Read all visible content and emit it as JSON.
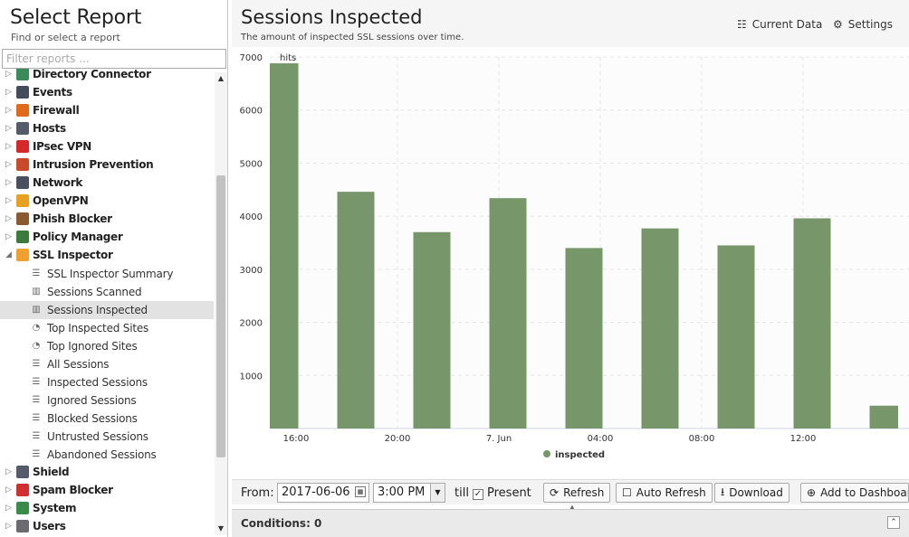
{
  "left": {
    "title": "Select Report",
    "subtitle": "Find or select a report",
    "filter_placeholder": "Filter reports ...",
    "categories_top": [
      {
        "label": "Directory Connector",
        "icon": "directory-connector-icon",
        "color": "#3a8a5a",
        "expanded": false
      },
      {
        "label": "Events",
        "icon": "events-icon",
        "color": "#444c5c",
        "expanded": false
      },
      {
        "label": "Firewall",
        "icon": "firewall-icon",
        "color": "#e06a1b",
        "expanded": false
      },
      {
        "label": "Hosts",
        "icon": "hosts-icon",
        "color": "#555b6a",
        "expanded": false
      },
      {
        "label": "IPsec VPN",
        "icon": "ipsec-vpn-icon",
        "color": "#d4282a",
        "expanded": false
      },
      {
        "label": "Intrusion Prevention",
        "icon": "intrusion-prevention-icon",
        "color": "#c94a2a",
        "expanded": false
      },
      {
        "label": "Network",
        "icon": "network-icon",
        "color": "#4a5060",
        "expanded": false
      },
      {
        "label": "OpenVPN",
        "icon": "openvpn-icon",
        "color": "#e8a020",
        "expanded": false
      },
      {
        "label": "Phish Blocker",
        "icon": "phish-blocker-icon",
        "color": "#8a5a30",
        "expanded": false
      },
      {
        "label": "Policy Manager",
        "icon": "policy-manager-icon",
        "color": "#3a7a3a",
        "expanded": false
      },
      {
        "label": "SSL Inspector",
        "icon": "ssl-inspector-icon",
        "color": "#f0a030",
        "expanded": true
      }
    ],
    "ssl_items": [
      {
        "label": "SSL Inspector Summary",
        "icon": "text-list-icon",
        "glyph": "☰"
      },
      {
        "label": "Sessions Scanned",
        "icon": "bar-chart-icon",
        "glyph": "▥"
      },
      {
        "label": "Sessions Inspected",
        "icon": "bar-chart-icon",
        "glyph": "▥",
        "selected": true
      },
      {
        "label": "Top Inspected Sites",
        "icon": "pie-chart-icon",
        "glyph": "◔"
      },
      {
        "label": "Top Ignored Sites",
        "icon": "pie-chart-icon",
        "glyph": "◔"
      },
      {
        "label": "All Sessions",
        "icon": "list-icon",
        "glyph": "☰"
      },
      {
        "label": "Inspected Sessions",
        "icon": "list-icon",
        "glyph": "☰"
      },
      {
        "label": "Ignored Sessions",
        "icon": "list-icon",
        "glyph": "☰"
      },
      {
        "label": "Blocked Sessions",
        "icon": "list-icon",
        "glyph": "☰"
      },
      {
        "label": "Untrusted Sessions",
        "icon": "list-icon",
        "glyph": "☰"
      },
      {
        "label": "Abandoned Sessions",
        "icon": "list-icon",
        "glyph": "☰"
      }
    ],
    "categories_bottom": [
      {
        "label": "Shield",
        "icon": "shield-icon",
        "color": "#555b6a",
        "expanded": false
      },
      {
        "label": "Spam Blocker",
        "icon": "spam-blocker-icon",
        "color": "#d03030",
        "expanded": false
      },
      {
        "label": "System",
        "icon": "system-icon",
        "color": "#3a8a4a",
        "expanded": false
      },
      {
        "label": "Users",
        "icon": "users-icon",
        "color": "#6a6a70",
        "expanded": false
      }
    ]
  },
  "report": {
    "title": "Sessions Inspected",
    "description": "The amount of inspected SSL sessions over time.",
    "current_data_label": "Current Data",
    "settings_label": "Settings"
  },
  "chart_data": {
    "type": "bar",
    "title": "",
    "ylabel": "hits",
    "xlabel": "",
    "ylim": [
      0,
      7000
    ],
    "yticks": [
      1000,
      2000,
      3000,
      4000,
      5000,
      6000,
      7000
    ],
    "xticks": [
      "16:00",
      "20:00",
      "7. Jun",
      "04:00",
      "08:00",
      "12:00"
    ],
    "grid": true,
    "legend_position": "bottom",
    "series": [
      {
        "name": "inspected",
        "color": "#77976a",
        "values": [
          6880,
          4460,
          3700,
          4340,
          3400,
          3770,
          3450,
          3960,
          430
        ]
      }
    ]
  },
  "toolbar": {
    "from_label": "From:",
    "date_value": "2017-06-06",
    "time_value": "3:00 PM",
    "till_label": "till",
    "present_label": "Present",
    "present_checked": "✓",
    "refresh_label": "Refresh",
    "auto_refresh_label": "Auto Refresh",
    "download_label": "Download",
    "add_dashboard_label": "Add to Dashboard"
  },
  "conditions": {
    "label": "Conditions: 0"
  }
}
